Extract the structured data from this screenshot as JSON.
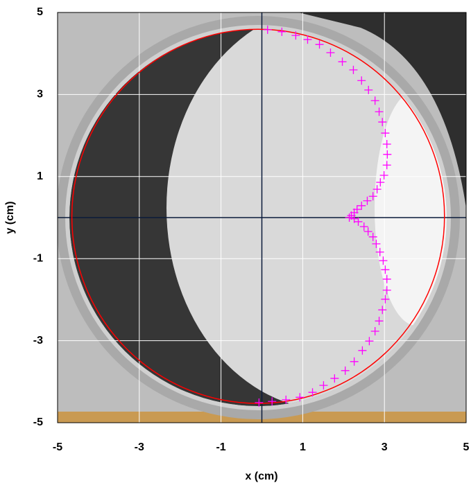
{
  "chart_data": {
    "type": "scatter",
    "x_label": "x (cm)",
    "y_label": "y (cm)",
    "xlim": [
      -5,
      5
    ],
    "ylim": [
      -5,
      5
    ],
    "xticks": [
      -5,
      -3,
      -1,
      1,
      3,
      5
    ],
    "yticks": [
      -5,
      -3,
      -1,
      1,
      3,
      5
    ],
    "grid": true,
    "circle": {
      "center": [
        -0.09,
        0.03
      ],
      "radius": 4.56,
      "color": "#ff0000"
    },
    "series": [
      {
        "color": "#ff00ff",
        "x": [
          0.14,
          0.49,
          0.83,
          1.12,
          1.41,
          1.68,
          1.97,
          2.24,
          2.44,
          2.61,
          2.77,
          2.87,
          2.95,
          3.02,
          3.06,
          3.07,
          3.06,
          2.99,
          2.9,
          2.82,
          2.72,
          2.58,
          2.44,
          2.33,
          2.26,
          2.19,
          2.14,
          2.26,
          2.36,
          2.5,
          2.6,
          2.72,
          2.8,
          2.89,
          2.97,
          3.02,
          3.06,
          3.06,
          3.02,
          2.95,
          2.87,
          2.77,
          2.63,
          2.46,
          2.26,
          2.04,
          1.78,
          1.51,
          1.24,
          0.93,
          0.59,
          0.25,
          -0.07
        ],
        "y": [
          4.58,
          4.53,
          4.44,
          4.34,
          4.22,
          4.02,
          3.8,
          3.6,
          3.34,
          3.11,
          2.85,
          2.58,
          2.33,
          2.06,
          1.79,
          1.54,
          1.28,
          1.03,
          0.86,
          0.69,
          0.52,
          0.41,
          0.29,
          0.2,
          0.12,
          0.05,
          0.0,
          -0.03,
          -0.1,
          -0.22,
          -0.34,
          -0.47,
          -0.64,
          -0.84,
          -1.05,
          -1.27,
          -1.5,
          -1.77,
          -1.99,
          -2.25,
          -2.52,
          -2.77,
          -3.01,
          -3.24,
          -3.51,
          -3.73,
          -3.92,
          -4.09,
          -4.26,
          -4.38,
          -4.44,
          -4.48,
          -4.51
        ]
      }
    ]
  }
}
